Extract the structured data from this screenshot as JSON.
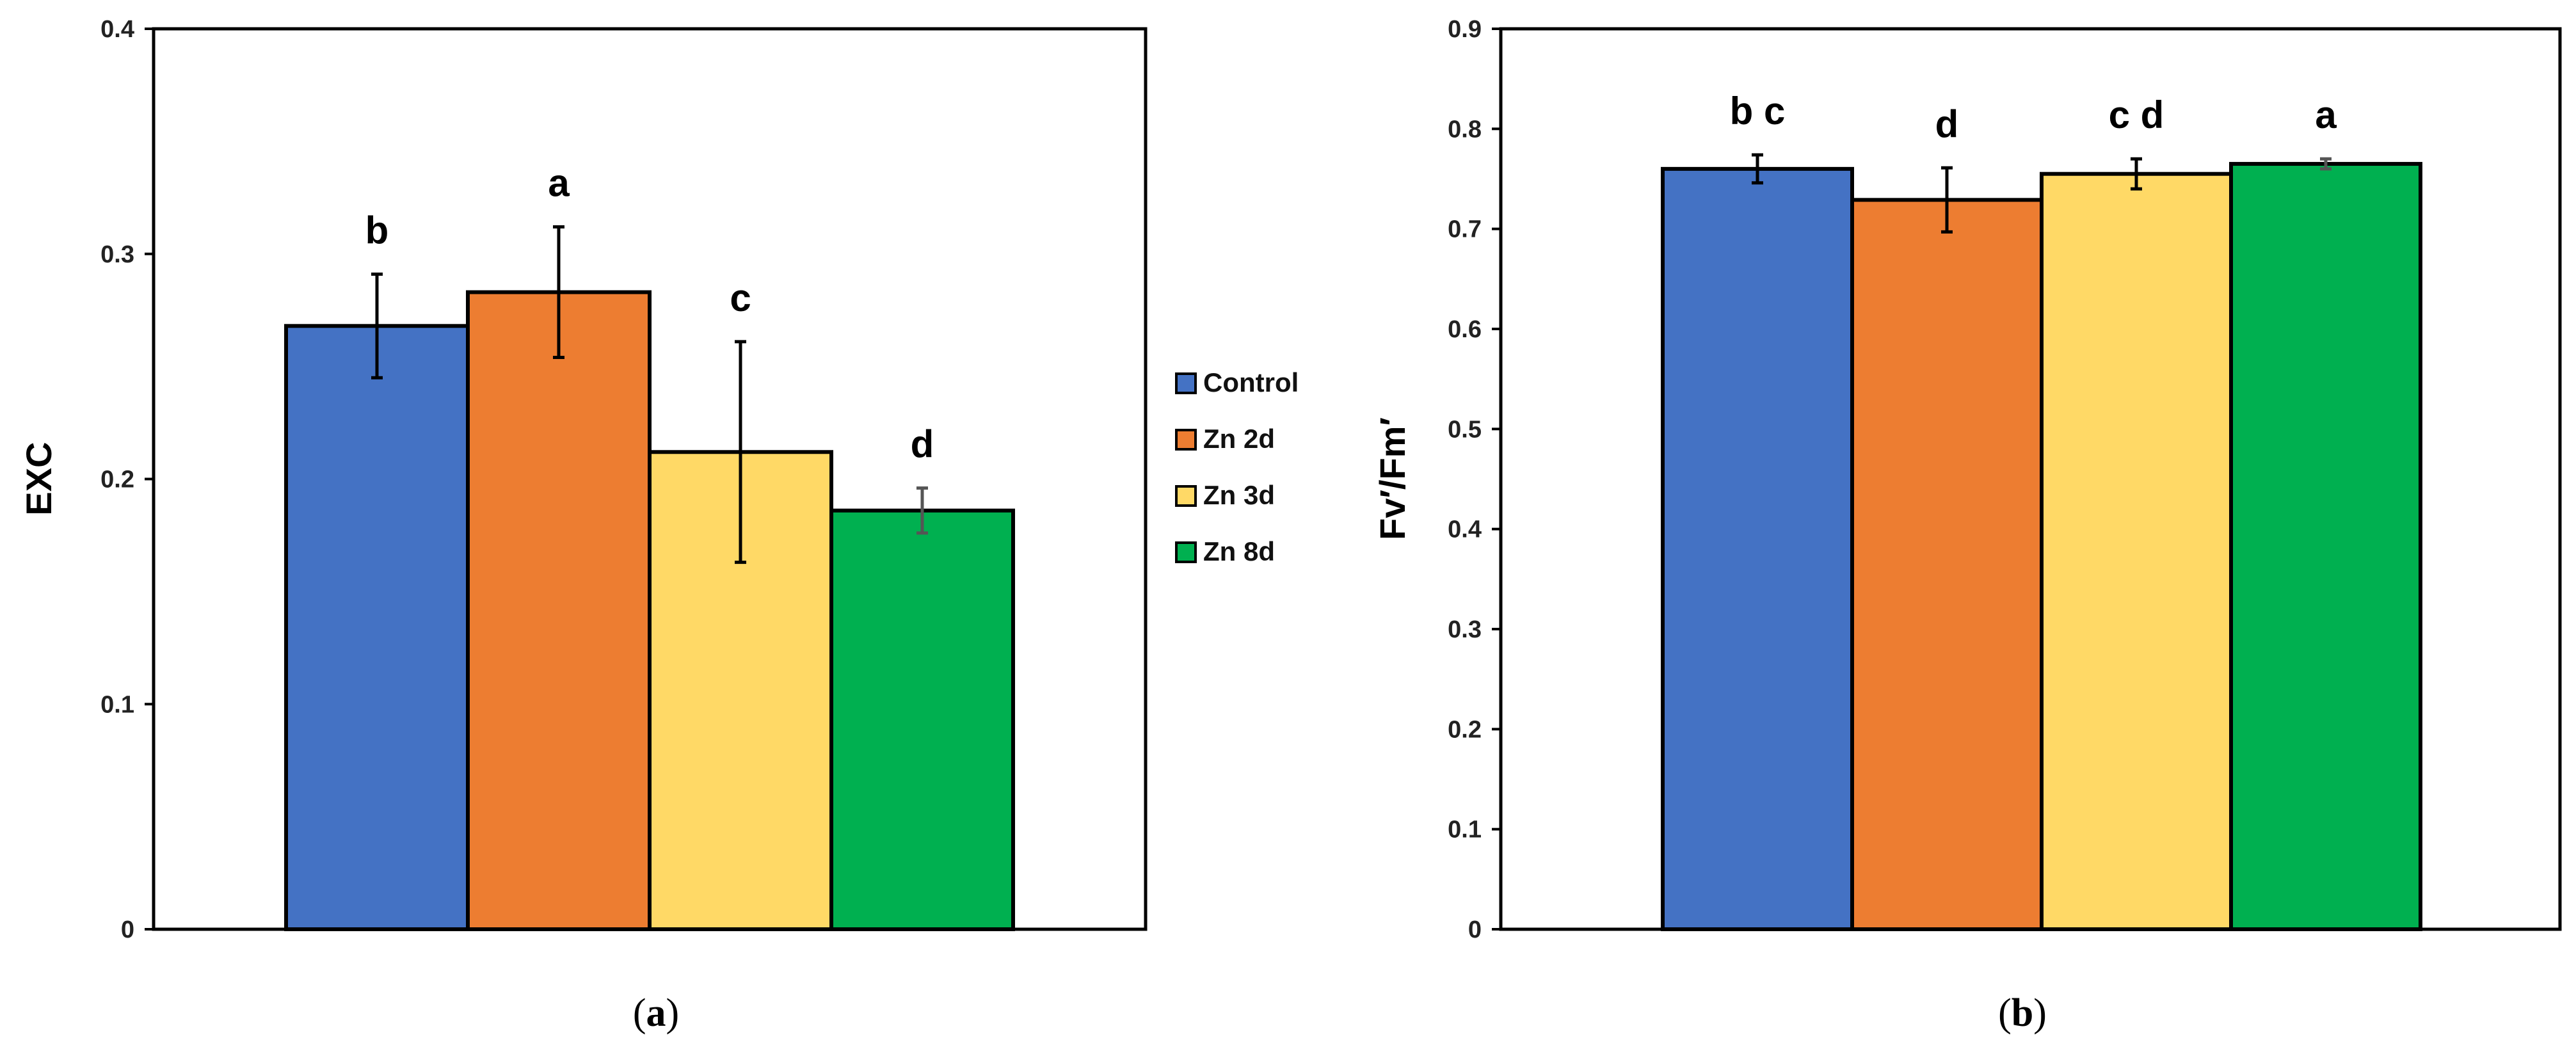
{
  "chart_data": [
    {
      "type": "bar",
      "caption": {
        "open": "(",
        "letter": "a",
        "close": ")"
      },
      "ylabel": "EXC",
      "ylim": [
        0,
        0.4
      ],
      "yticks": [
        "0",
        "0.1",
        "0.2",
        "0.3",
        "0.4"
      ],
      "yticks_values": [
        0,
        0.1,
        0.2,
        0.3,
        0.4
      ],
      "categories": [
        "Control",
        "Zn 2d",
        "Zn 3d",
        "Zn 8d"
      ],
      "values": [
        0.268,
        0.283,
        0.212,
        0.186
      ],
      "errors": [
        0.023,
        0.029,
        0.049,
        0.01
      ],
      "significance": [
        "b",
        "a",
        "c",
        "d"
      ],
      "colors": [
        "#4472C4",
        "#ED7D31",
        "#FFD966",
        "#00B050"
      ]
    },
    {
      "type": "bar",
      "caption": {
        "open": "(",
        "letter": "b",
        "close": ")"
      },
      "ylabel": "Fv′/Fm′",
      "ylim": [
        0,
        0.9
      ],
      "yticks": [
        "0",
        "0.1",
        "0.2",
        "0.3",
        "0.4",
        "0.5",
        "0.6",
        "0.7",
        "0.8",
        "0.9"
      ],
      "yticks_values": [
        0,
        0.1,
        0.2,
        0.3,
        0.4,
        0.5,
        0.6,
        0.7,
        0.8,
        0.9
      ],
      "categories": [
        "Control",
        "Zn 2d",
        "Zn 3d",
        "Zn 8d"
      ],
      "values": [
        0.76,
        0.729,
        0.755,
        0.765
      ],
      "errors": [
        0.014,
        0.032,
        0.015,
        0.005
      ],
      "significance": [
        "b c",
        "d",
        "c d",
        "a"
      ],
      "colors": [
        "#4472C4",
        "#ED7D31",
        "#FFD966",
        "#00B050"
      ]
    }
  ],
  "legend": {
    "items": [
      {
        "label": "Control",
        "color": "#4472C4"
      },
      {
        "label": "Zn 2d",
        "color": "#ED7D31"
      },
      {
        "label": "Zn 3d",
        "color": "#FFD966"
      },
      {
        "label": "Zn 8d",
        "color": "#00B050"
      }
    ]
  }
}
